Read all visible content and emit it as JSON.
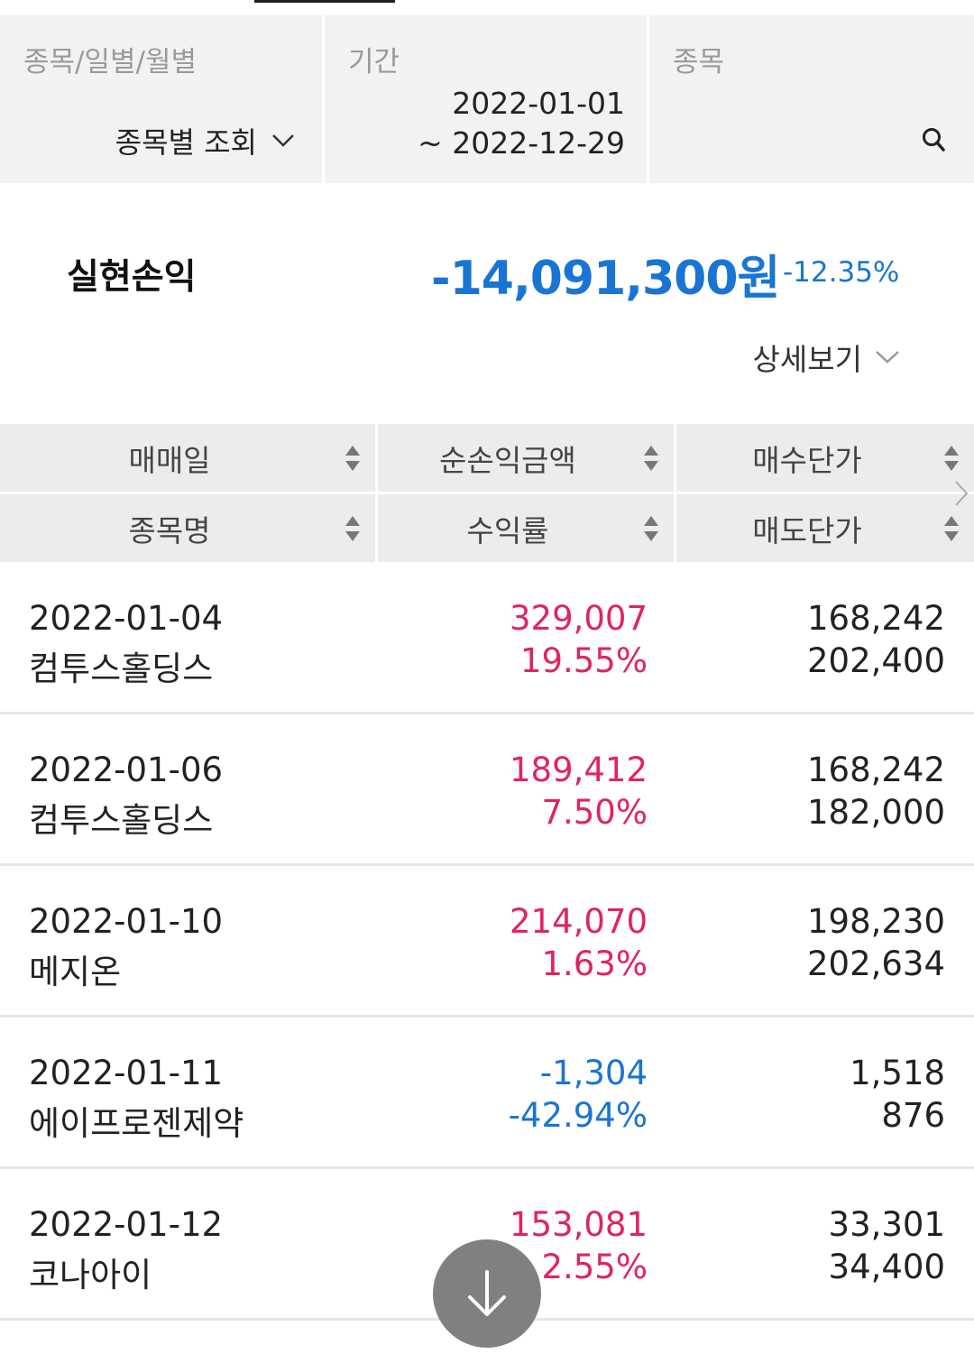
{
  "filters": {
    "mode": {
      "label": "종목/일별/월별",
      "value": "종목별 조회"
    },
    "period": {
      "label": "기간",
      "start": "2022-01-01",
      "end": "~ 2022-12-29"
    },
    "stock": {
      "label": "종목",
      "value": ""
    }
  },
  "summary": {
    "label": "실현손익",
    "amount": "-14,091,300원",
    "rate": "-12.35%",
    "detail_label": "상세보기"
  },
  "columns": {
    "row1": [
      "매매일",
      "순손익금액",
      "매수단가"
    ],
    "row2": [
      "종목명",
      "수익률",
      "매도단가"
    ]
  },
  "rows": [
    {
      "date": "2022-01-04",
      "name": "컴투스홀딩스",
      "profit": "329,007",
      "rate": "19.55%",
      "buy": "168,242",
      "sell": "202,400",
      "sign": "pos"
    },
    {
      "date": "2022-01-06",
      "name": "컴투스홀딩스",
      "profit": "189,412",
      "rate": "7.50%",
      "buy": "168,242",
      "sell": "182,000",
      "sign": "pos"
    },
    {
      "date": "2022-01-10",
      "name": "메지온",
      "profit": "214,070",
      "rate": "1.63%",
      "buy": "198,230",
      "sell": "202,634",
      "sign": "pos"
    },
    {
      "date": "2022-01-11",
      "name": "에이프로젠제약",
      "profit": "-1,304",
      "rate": "-42.94%",
      "buy": "1,518",
      "sell": "876",
      "sign": "neg"
    },
    {
      "date": "2022-01-12",
      "name": "코나아이",
      "profit": "153,081",
      "rate": "2.55%",
      "buy": "33,301",
      "sell": "34,400",
      "sign": "pos"
    }
  ],
  "colors": {
    "positive": "#e0245e",
    "negative": "#1a74d4",
    "header_bg": "#ececec"
  },
  "icons": {
    "dropdown": "chevron-down-icon",
    "search": "search-icon",
    "sort": "sort-icon",
    "scroll_down": "arrow-down-icon",
    "scroll_right": "chevron-right-icon"
  }
}
